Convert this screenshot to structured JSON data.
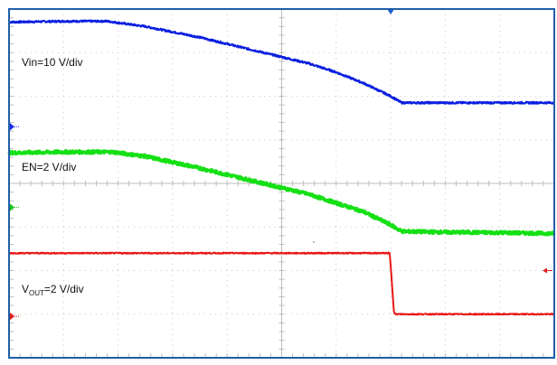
{
  "chart_data": {
    "type": "line",
    "title": "",
    "xlabel": "",
    "ylabel": "",
    "grid": true,
    "grid_divisions": {
      "x": 10,
      "y": 8
    },
    "xlim": [
      0,
      10
    ],
    "ylim": [
      -4,
      4
    ],
    "series": [
      {
        "name": "Vin",
        "label": "Vin=10 V/div",
        "color": "#0a1fe0",
        "marker_color": "#1a2be8",
        "ground_level_div": 1.3,
        "x": [
          0,
          1.0,
          1.8,
          2.5,
          3.5,
          4.5,
          5.0,
          5.5,
          6.0,
          6.5,
          7.0,
          7.2,
          8.0,
          9.0,
          10.0
        ],
        "y": [
          3.7,
          3.72,
          3.72,
          3.6,
          3.35,
          3.05,
          2.9,
          2.75,
          2.55,
          2.3,
          2.0,
          1.85,
          1.85,
          1.85,
          1.85
        ]
      },
      {
        "name": "EN",
        "label": "EN=2 V/div",
        "color": "#15e015",
        "marker_color": "#19c419",
        "ground_level_div": -0.55,
        "x": [
          0,
          1.0,
          1.9,
          2.5,
          3.5,
          4.5,
          5.0,
          5.5,
          6.0,
          6.5,
          7.0,
          7.2,
          8.0,
          9.0,
          10.0
        ],
        "y": [
          0.7,
          0.72,
          0.72,
          0.62,
          0.35,
          0.05,
          -0.1,
          -0.25,
          -0.45,
          -0.65,
          -0.95,
          -1.1,
          -1.12,
          -1.13,
          -1.15
        ]
      },
      {
        "name": "VOUT",
        "label_prefix": "V",
        "label_sub": "OUT",
        "label_suffix": "=2 V/div",
        "color": "#e81515",
        "marker_color": "#e01e1e",
        "ground_level_div": -3.05,
        "x": [
          0,
          2.0,
          4.0,
          6.0,
          6.98,
          7.0,
          7.06,
          7.08,
          8.0,
          9.0,
          10.0
        ],
        "y": [
          -1.6,
          -1.6,
          -1.6,
          -1.6,
          -1.6,
          -1.9,
          -2.95,
          -3.0,
          -3.0,
          -3.0,
          -3.0
        ]
      }
    ],
    "trigger_marker_x_div": 7.0
  }
}
